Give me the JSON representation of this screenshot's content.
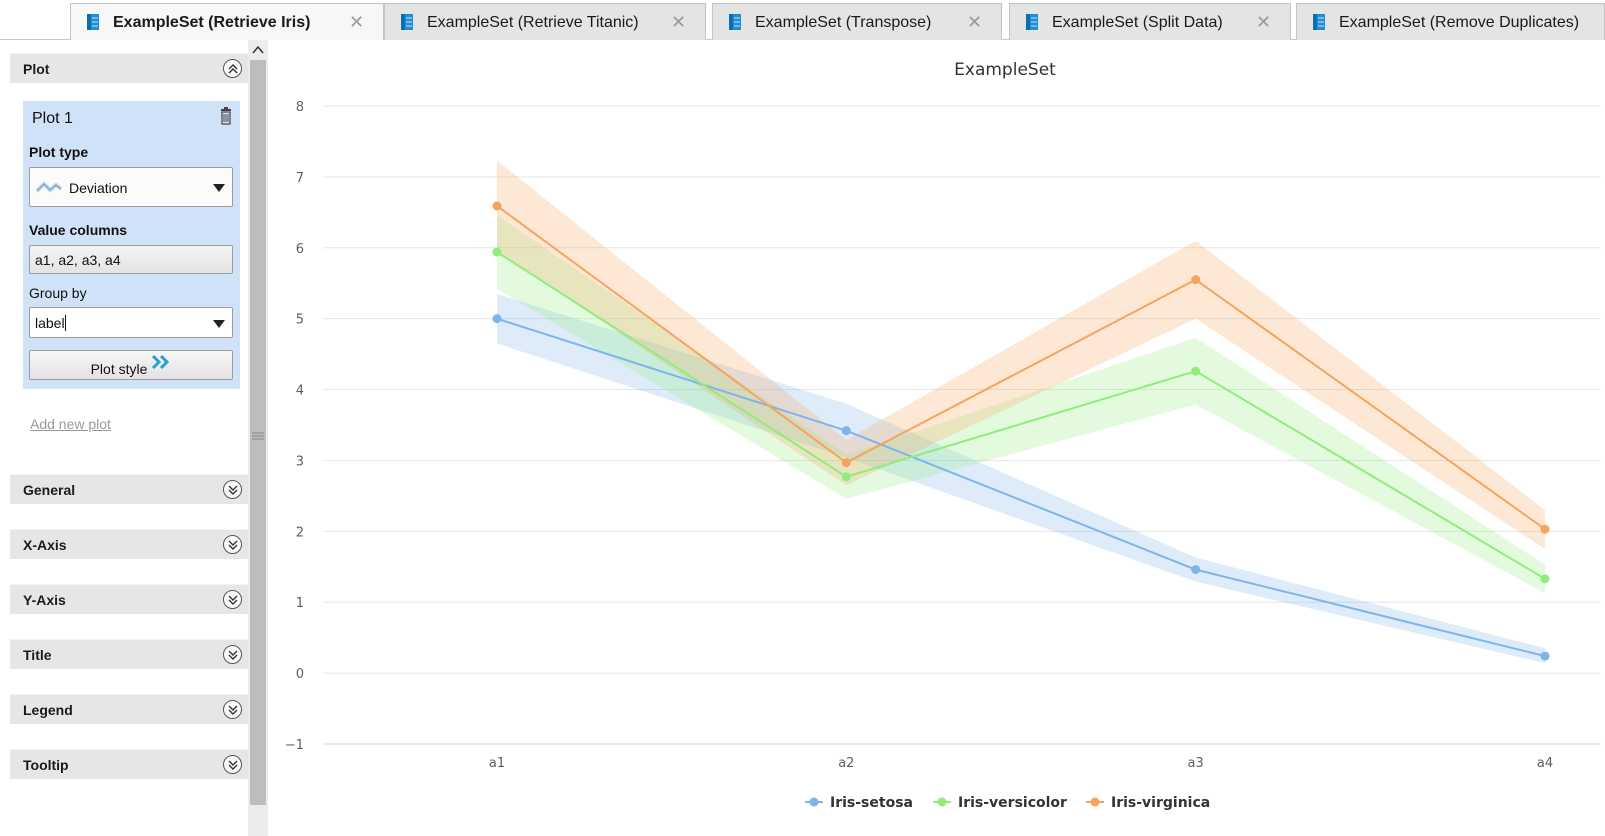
{
  "tabs": [
    {
      "label": "ExampleSet (Retrieve Iris)",
      "active": true,
      "icon": "exampleset-icon"
    },
    {
      "label": "ExampleSet (Retrieve Titanic)",
      "active": false,
      "icon": "exampleset-icon"
    },
    {
      "label": "ExampleSet (Transpose)",
      "active": false,
      "icon": "exampleset-icon"
    },
    {
      "label": "ExampleSet (Split Data)",
      "active": false,
      "icon": "exampleset-icon"
    },
    {
      "label": "ExampleSet (Remove Duplicates)",
      "active": false,
      "icon": "exampleset-icon"
    }
  ],
  "sidebar": {
    "plot_section": {
      "label": "Plot",
      "expanded": true
    },
    "plot_card": {
      "title": "Plot 1",
      "plot_type_label": "Plot type",
      "plot_type_value": "Deviation",
      "value_columns_label": "Value columns",
      "value_columns_value": "a1, a2, a3, a4",
      "group_by_label": "Group by",
      "group_by_value": "label",
      "plot_style_label": "Plot style"
    },
    "add_new_plot": "Add new plot",
    "sections": [
      {
        "label": "General"
      },
      {
        "label": "X-Axis"
      },
      {
        "label": "Y-Axis"
      },
      {
        "label": "Title"
      },
      {
        "label": "Legend"
      },
      {
        "label": "Tooltip"
      }
    ]
  },
  "colors": {
    "accent": "#cfe2f7",
    "setosa": "#7cb5ec",
    "versicolor": "#90ed7d",
    "virginica": "#f7a35c"
  },
  "chart_data": {
    "type": "line",
    "title": "ExampleSet",
    "categories": [
      "a1",
      "a2",
      "a3",
      "a4"
    ],
    "ylim": [
      -1,
      8
    ],
    "yticks": [
      "8",
      "7",
      "6",
      "5",
      "4",
      "3",
      "2",
      "1",
      "0",
      "−1"
    ],
    "grid": true,
    "legend_position": "bottom-center",
    "series": [
      {
        "name": "Iris-setosa",
        "color": "#7cb5ec",
        "values": [
          5.0,
          3.42,
          1.46,
          0.24
        ],
        "lower": [
          4.65,
          3.04,
          1.29,
          0.14
        ],
        "upper": [
          5.35,
          3.8,
          1.63,
          0.35
        ]
      },
      {
        "name": "Iris-versicolor",
        "color": "#90ed7d",
        "values": [
          5.94,
          2.77,
          4.26,
          1.33
        ],
        "lower": [
          5.42,
          2.46,
          3.79,
          1.13
        ],
        "upper": [
          6.46,
          3.08,
          4.73,
          1.53
        ]
      },
      {
        "name": "Iris-virginica",
        "color": "#f7a35c",
        "values": [
          6.59,
          2.97,
          5.55,
          2.03
        ],
        "lower": [
          5.95,
          2.65,
          5.0,
          1.75
        ],
        "upper": [
          7.23,
          3.29,
          6.1,
          2.3
        ]
      }
    ]
  }
}
